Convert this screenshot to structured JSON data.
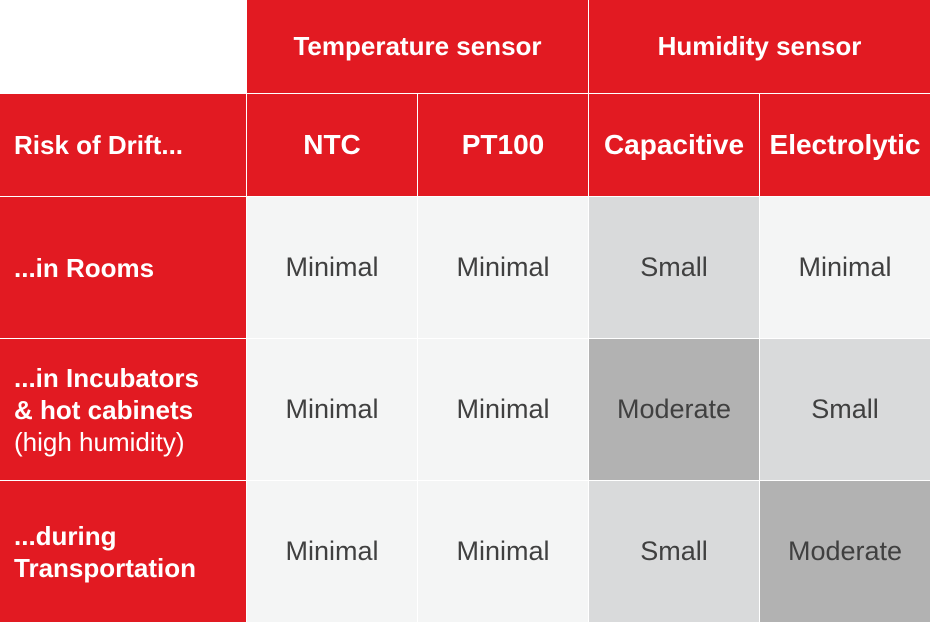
{
  "header": {
    "groups": [
      {
        "label": "Temperature sensor"
      },
      {
        "label": "Humidity sensor"
      }
    ],
    "corner_label": "Risk of Drift...",
    "columns": [
      {
        "label": "NTC"
      },
      {
        "label": "PT100"
      },
      {
        "label": "Capacitive"
      },
      {
        "label": "Electrolytic"
      }
    ]
  },
  "rows": [
    {
      "label_line1": "...in Rooms",
      "values": [
        "Minimal",
        "Minimal",
        "Small",
        "Minimal"
      ]
    },
    {
      "label_line1": "...in Incubators",
      "label_line2": "& hot cabinets",
      "label_note": "(high humidity)",
      "values": [
        "Minimal",
        "Minimal",
        "Moderate",
        "Small"
      ]
    },
    {
      "label_line1": "...during",
      "label_line2": "Transportation",
      "values": [
        "Minimal",
        "Minimal",
        "Small",
        "Moderate"
      ]
    }
  ],
  "colors": {
    "header_red": "#e21a22",
    "minimal": "#f4f5f5",
    "small": "#d9dadb",
    "moderate": "#b2b2b2"
  }
}
